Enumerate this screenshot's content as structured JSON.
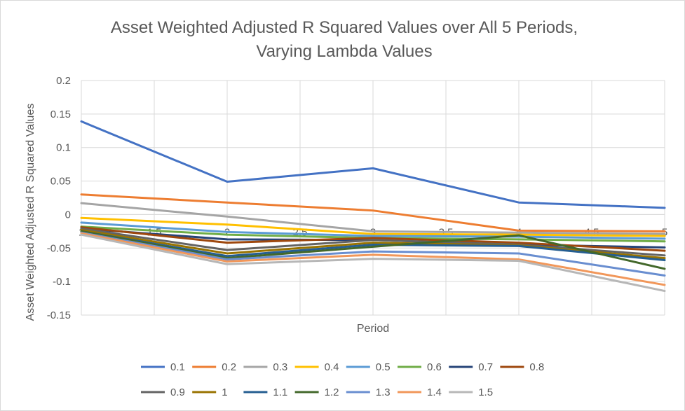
{
  "chart_data": {
    "type": "line",
    "title_lines": [
      "Asset Weighted Adjusted R Squared Values over All 5 Periods,",
      "Varying Lambda Values"
    ],
    "xlabel": "Period",
    "ylabel": "Asset Weighted Adjusted R Squared Values",
    "xlim": [
      1,
      5
    ],
    "ylim": [
      -0.15,
      0.2
    ],
    "x_ticks": [
      1,
      1.5,
      2,
      2.5,
      3,
      3.5,
      4,
      4.5,
      5
    ],
    "x_tick_labels": [
      "1",
      "1.5",
      "2",
      "2.5",
      "3",
      "3.5",
      "4",
      "4.5",
      "5"
    ],
    "y_ticks": [
      -0.15,
      -0.1,
      -0.05,
      0,
      0.05,
      0.1,
      0.15,
      0.2
    ],
    "y_tick_labels": [
      "-0.15",
      "-0.1",
      "-0.05",
      "0",
      "0.05",
      "0.1",
      "0.15",
      "0.2"
    ],
    "grid": true,
    "legend_position": "bottom",
    "x": [
      1,
      2,
      3,
      4,
      5
    ],
    "series": [
      {
        "name": "0.1",
        "color": "#4472C4",
        "values": [
          0.139,
          0.049,
          0.069,
          0.018,
          0.01
        ]
      },
      {
        "name": "0.2",
        "color": "#ED7D31",
        "values": [
          0.03,
          0.018,
          0.006,
          -0.024,
          -0.025
        ]
      },
      {
        "name": "0.3",
        "color": "#A5A5A5",
        "values": [
          0.017,
          -0.003,
          -0.025,
          -0.027,
          -0.029
        ]
      },
      {
        "name": "0.4",
        "color": "#FFC000",
        "values": [
          -0.005,
          -0.015,
          -0.029,
          -0.03,
          -0.032
        ]
      },
      {
        "name": "0.5",
        "color": "#5B9BD5",
        "values": [
          -0.012,
          -0.026,
          -0.032,
          -0.033,
          -0.036
        ]
      },
      {
        "name": "0.6",
        "color": "#70AD47",
        "values": [
          -0.018,
          -0.03,
          -0.035,
          -0.037,
          -0.04
        ]
      },
      {
        "name": "0.7",
        "color": "#264478",
        "values": [
          -0.021,
          -0.037,
          -0.038,
          -0.045,
          -0.049
        ]
      },
      {
        "name": "0.8",
        "color": "#9E480E",
        "values": [
          -0.019,
          -0.042,
          -0.035,
          -0.042,
          -0.054
        ]
      },
      {
        "name": "0.9",
        "color": "#636363",
        "values": [
          -0.021,
          -0.053,
          -0.038,
          -0.045,
          -0.061
        ]
      },
      {
        "name": "1",
        "color": "#997300",
        "values": [
          -0.023,
          -0.058,
          -0.042,
          -0.046,
          -0.065
        ]
      },
      {
        "name": "1.1",
        "color": "#255E91",
        "values": [
          -0.025,
          -0.062,
          -0.045,
          -0.047,
          -0.068
        ]
      },
      {
        "name": "1.2",
        "color": "#43682B",
        "values": [
          -0.025,
          -0.065,
          -0.048,
          -0.031,
          -0.081
        ]
      },
      {
        "name": "1.3",
        "color": "#698ED0",
        "values": [
          -0.027,
          -0.067,
          -0.055,
          -0.058,
          -0.091
        ]
      },
      {
        "name": "1.4",
        "color": "#F1975A",
        "values": [
          -0.028,
          -0.07,
          -0.06,
          -0.067,
          -0.105
        ]
      },
      {
        "name": "1.5",
        "color": "#B7B7B7",
        "values": [
          -0.03,
          -0.074,
          -0.066,
          -0.069,
          -0.114
        ]
      }
    ]
  }
}
